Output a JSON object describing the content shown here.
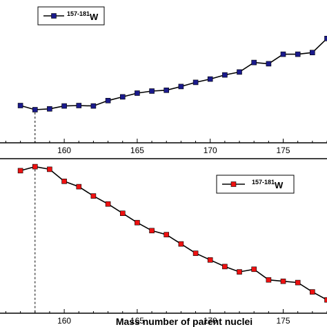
{
  "chart_data": [
    {
      "type": "line",
      "panel": "top",
      "x": [
        157,
        158,
        159,
        160,
        161,
        162,
        163,
        164,
        165,
        166,
        167,
        168,
        169,
        170,
        171,
        172,
        173,
        174,
        175,
        176,
        177,
        178
      ],
      "series": [
        {
          "name_prefix": "157-181",
          "name_main": "W",
          "marker": "square",
          "color": "#1a1a8c",
          "values": [
            0.9,
            0.8,
            0.82,
            0.89,
            0.9,
            0.89,
            1.02,
            1.11,
            1.2,
            1.25,
            1.27,
            1.36,
            1.46,
            1.54,
            1.64,
            1.71,
            1.94,
            1.91,
            2.14,
            2.14,
            2.18,
            2.52
          ]
        }
      ],
      "xticks": [
        160,
        165,
        170,
        175
      ],
      "xlim": [
        155.6,
        178.0
      ],
      "ylim": [
        0,
        3.45
      ],
      "dashed_line_x": 158,
      "legend_position": "top-left"
    },
    {
      "type": "line",
      "panel": "bottom",
      "x": [
        157,
        158,
        159,
        160,
        161,
        162,
        163,
        164,
        165,
        166,
        167,
        168,
        169,
        170,
        171,
        172,
        173,
        174,
        175,
        176,
        177,
        178
      ],
      "series": [
        {
          "name_prefix": "157-181",
          "name_main": "W",
          "marker": "square",
          "color": "#ee1111",
          "values": [
            2.15,
            2.3,
            2.2,
            1.75,
            1.55,
            1.2,
            0.9,
            0.55,
            0.2,
            -0.1,
            -0.25,
            -0.6,
            -0.95,
            -1.2,
            -1.45,
            -1.65,
            -1.55,
            -1.95,
            -2.0,
            -2.05,
            -2.4,
            -2.7
          ]
        }
      ],
      "xticks": [
        160,
        165,
        170,
        175
      ],
      "xlim": [
        155.6,
        178.0
      ],
      "ylim": [
        -3.2,
        2.6
      ],
      "dashed_line_x": 158,
      "xlabel": "Mass number of parent nuclei",
      "legend_position": "top-right"
    }
  ]
}
